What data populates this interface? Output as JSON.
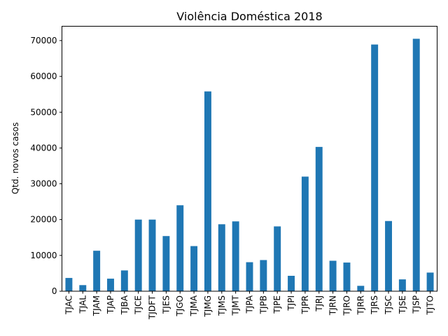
{
  "chart_data": {
    "type": "bar",
    "title": "Violência Doméstica 2018",
    "xlabel": "",
    "ylabel": "Qtd. novos casos",
    "ylim": [
      0,
      74000
    ],
    "yticks": [
      0,
      10000,
      20000,
      30000,
      40000,
      50000,
      60000,
      70000
    ],
    "grid": false,
    "bar_color": "#1f77b4",
    "categories": [
      "TJAC",
      "TJAL",
      "TJAM",
      "TJAP",
      "TJBA",
      "TJCE",
      "TJDFT",
      "TJES",
      "TJGO",
      "TJMA",
      "TJMG",
      "TJMS",
      "TJMT",
      "TJPA",
      "TJPB",
      "TJPE",
      "TJPI",
      "TJPR",
      "TJRJ",
      "TJRN",
      "TJRO",
      "TJRR",
      "TJRS",
      "TJSC",
      "TJSE",
      "TJSP",
      "TJTO"
    ],
    "values": [
      3700,
      1700,
      11300,
      3500,
      5800,
      20000,
      20000,
      15400,
      24000,
      12600,
      55800,
      18700,
      19500,
      8100,
      8700,
      18100,
      4300,
      32000,
      40300,
      8500,
      8000,
      1500,
      68900,
      19600,
      3300,
      70500,
      5200
    ]
  }
}
